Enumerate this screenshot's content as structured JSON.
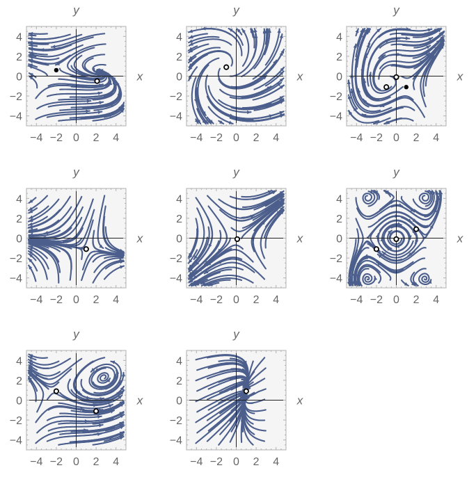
{
  "colors": {
    "stream": "#4c5f8c",
    "frame": "#b0b0b0",
    "axis": "#222222",
    "label": "#666666",
    "background": "#f5f5f5"
  },
  "chart_data": [
    {
      "type": "streamplot",
      "xlabel": "x",
      "ylabel": "y",
      "xlim": [
        -5,
        5
      ],
      "ylim": [
        -5,
        5
      ],
      "xticks": [
        "−4",
        "−2",
        "0",
        "2",
        "4"
      ],
      "yticks": [
        "4",
        "2",
        "0",
        "−2",
        "−4"
      ],
      "field": "spiral",
      "fixed_points": [
        {
          "x": -2,
          "y": 0.6,
          "kind": "filled"
        },
        {
          "x": 2.1,
          "y": -0.5,
          "kind": "open"
        }
      ]
    },
    {
      "type": "streamplot",
      "xlabel": "x",
      "ylabel": "y",
      "xlim": [
        -5,
        5
      ],
      "ylim": [
        -5,
        5
      ],
      "xticks": [
        "−4",
        "−2",
        "0",
        "2",
        "4"
      ],
      "yticks": [
        "4",
        "2",
        "0",
        "−2",
        "−4"
      ],
      "field": "unstable_spiral",
      "fixed_points": [
        {
          "x": -1,
          "y": 0.9,
          "kind": "open"
        }
      ]
    },
    {
      "type": "streamplot",
      "xlabel": "x",
      "ylabel": "y",
      "xlim": [
        -5,
        5
      ],
      "ylim": [
        -5,
        5
      ],
      "xticks": [
        "−4",
        "−2",
        "0",
        "2",
        "4"
      ],
      "yticks": [
        "4",
        "2",
        "0",
        "−2",
        "−4"
      ],
      "field": "three_point",
      "fixed_points": [
        {
          "x": 0,
          "y": -0.1,
          "kind": "open"
        },
        {
          "x": -1,
          "y": -1.1,
          "kind": "open"
        },
        {
          "x": 1,
          "y": -1.1,
          "kind": "filled"
        }
      ]
    },
    {
      "type": "streamplot",
      "xlabel": "x",
      "ylabel": "y",
      "xlim": [
        -5,
        5
      ],
      "ylim": [
        -5,
        5
      ],
      "xticks": [
        "−4",
        "−2",
        "0",
        "2",
        "4"
      ],
      "yticks": [
        "4",
        "2",
        "0",
        "−2",
        "−4"
      ],
      "field": "node_source",
      "fixed_points": [
        {
          "x": 1,
          "y": -1.1,
          "kind": "open"
        }
      ]
    },
    {
      "type": "streamplot",
      "xlabel": "x",
      "ylabel": "y",
      "xlim": [
        -5,
        5
      ],
      "ylim": [
        -5,
        5
      ],
      "xticks": [
        "−4",
        "−2",
        "0",
        "2",
        "4"
      ],
      "yticks": [
        "4",
        "2",
        "0",
        "−2",
        "−4"
      ],
      "field": "saddle",
      "fixed_points": [
        {
          "x": 0.1,
          "y": -0.1,
          "kind": "open"
        }
      ]
    },
    {
      "type": "streamplot",
      "xlabel": "x",
      "ylabel": "y",
      "xlim": [
        -5,
        5
      ],
      "ylim": [
        -5,
        5
      ],
      "xticks": [
        "−4",
        "−2",
        "0",
        "2",
        "4"
      ],
      "yticks": [
        "4",
        "2",
        "0",
        "−2",
        "−4"
      ],
      "field": "center_with_saddles",
      "fixed_points": [
        {
          "x": 0,
          "y": -0.1,
          "kind": "open"
        },
        {
          "x": -2,
          "y": -1.1,
          "kind": "open"
        },
        {
          "x": 2,
          "y": 0.9,
          "kind": "open"
        }
      ]
    },
    {
      "type": "streamplot",
      "xlabel": "x",
      "ylabel": "y",
      "xlim": [
        -5,
        5
      ],
      "ylim": [
        -5,
        5
      ],
      "xticks": [
        "−4",
        "−2",
        "0",
        "2",
        "4"
      ],
      "yticks": [
        "4",
        "2",
        "0",
        "−2",
        "−4"
      ],
      "field": "two_point",
      "fixed_points": [
        {
          "x": -2,
          "y": 0.9,
          "kind": "open"
        },
        {
          "x": 2,
          "y": -1.1,
          "kind": "open"
        }
      ]
    },
    {
      "type": "streamplot",
      "xlabel": "x",
      "ylabel": "y",
      "xlim": [
        -5,
        5
      ],
      "ylim": [
        -5,
        5
      ],
      "xticks": [
        "−4",
        "−2",
        "0",
        "2",
        "4"
      ],
      "yticks": [
        "4",
        "2",
        "0",
        "−2",
        "−4"
      ],
      "field": "star_sink",
      "fixed_points": [
        {
          "x": 1,
          "y": 0.9,
          "kind": "open"
        }
      ]
    }
  ]
}
